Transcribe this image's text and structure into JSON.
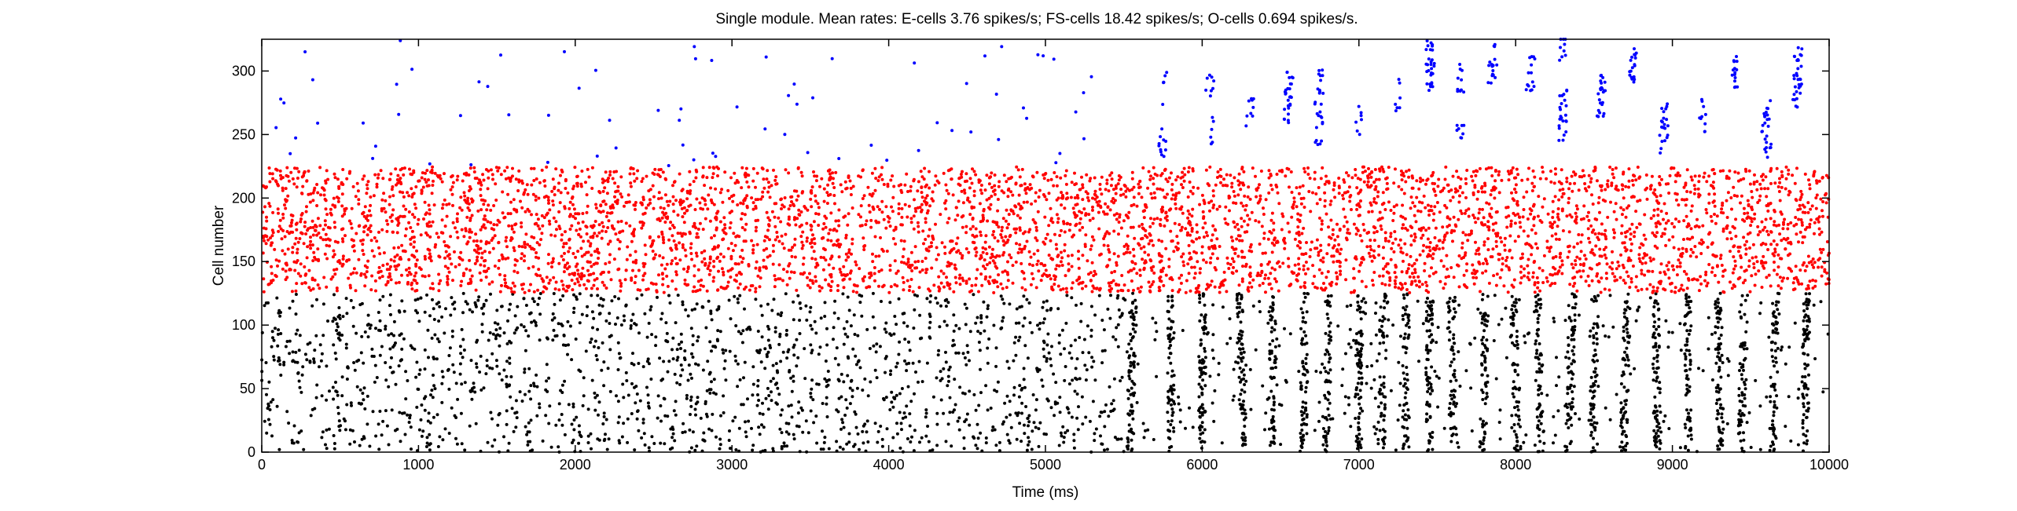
{
  "chart_data": {
    "type": "scatter",
    "title": "Single module. Mean rates: E-cells 3.76 spikes/s; FS-cells 18.42 spikes/s; O-cells 0.694 spikes/s.",
    "xlabel": "Time (ms)",
    "ylabel": "Cell number",
    "xlim": [
      0,
      10000
    ],
    "ylim": [
      0,
      325
    ],
    "xticks": [
      0,
      1000,
      2000,
      3000,
      4000,
      5000,
      6000,
      7000,
      8000,
      9000,
      10000
    ],
    "yticks": [
      0,
      50,
      100,
      150,
      200,
      250,
      300
    ],
    "grid": false,
    "legend": "none",
    "marker": "dot",
    "series": [
      {
        "population": "E-cells",
        "color": "#000000",
        "cell_range": [
          0,
          125
        ],
        "mean_rate_spikes_per_s": 3.76,
        "pattern": "sparse irregular spiking from 0-5000 ms, then synchronized population bursts (vertical stripes) from ~5500-10000 ms",
        "burst_times_ms": [
          5550,
          5800,
          6000,
          6250,
          6450,
          6650,
          6800,
          7000,
          7150,
          7300,
          7450,
          7600,
          7800,
          8000,
          8150,
          8350,
          8500,
          8700,
          8900,
          9100,
          9300,
          9450,
          9650,
          9850
        ]
      },
      {
        "population": "FS-cells",
        "color": "#ff0000",
        "cell_range": [
          125,
          225
        ],
        "mean_rate_spikes_per_s": 18.42,
        "pattern": "dense continuous spiking across the whole 0-10000 ms window"
      },
      {
        "population": "O-cells",
        "color": "#0000ff",
        "cell_range": [
          225,
          325
        ],
        "mean_rate_spikes_per_s": 0.694,
        "pattern": "very sparse spiking before 5500 ms, then clustered bursts aligned with E-cell bursts",
        "burst_times_ms": [
          5750,
          6050,
          6300,
          6550,
          6750,
          7000,
          7250,
          7450,
          7650,
          7850,
          8100,
          8300,
          8550,
          8750,
          8950,
          9200,
          9400,
          9600,
          9800
        ]
      }
    ]
  }
}
